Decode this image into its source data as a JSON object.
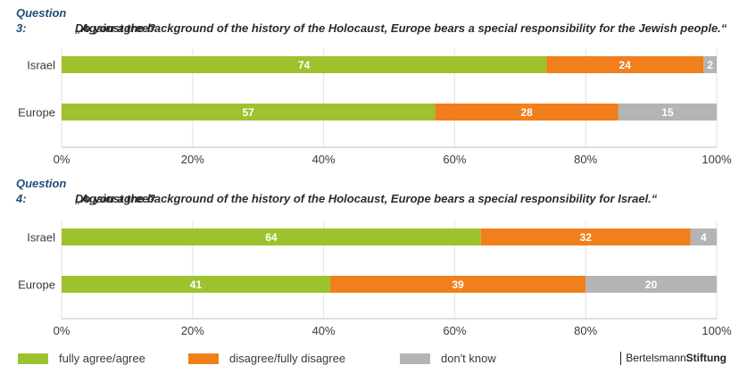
{
  "questions": [
    {
      "number": "Question 3:",
      "text": "„Against the background of the history of the Holocaust, Europe bears a special responsibility for the Jewish people.“",
      "sub": "Do you agree?"
    },
    {
      "number": "Question 4:",
      "text": "„Against the background of the history of the Holocaust, Europe bears a special responsibility for Israel.“",
      "sub": "Do you agree?"
    }
  ],
  "colors": {
    "agree": "#9dc22e",
    "disagree": "#f07f1c",
    "dontknow": "#b4b4b4",
    "title": "#1f4e79"
  },
  "legend": {
    "agree": "fully agree/agree",
    "disagree": "disagree/fully disagree",
    "dontknow": "don't know"
  },
  "brand": {
    "prefix": "Bertelsmann",
    "suffix": "Stiftung"
  },
  "chart_data": [
    {
      "type": "bar",
      "orientation": "horizontal",
      "stacked": true,
      "categories": [
        "Israel",
        "Europe"
      ],
      "series": [
        {
          "name": "fully agree/agree",
          "values": [
            74,
            57
          ]
        },
        {
          "name": "disagree/fully disagree",
          "values": [
            24,
            28
          ]
        },
        {
          "name": "don't know",
          "values": [
            2,
            15
          ]
        }
      ],
      "xlim": [
        0,
        100
      ],
      "ticks": [
        "0%",
        "20%",
        "40%",
        "60%",
        "80%",
        "100%"
      ],
      "legend_position": "bottom"
    },
    {
      "type": "bar",
      "orientation": "horizontal",
      "stacked": true,
      "categories": [
        "Israel",
        "Europe"
      ],
      "series": [
        {
          "name": "fully agree/agree",
          "values": [
            64,
            41
          ]
        },
        {
          "name": "disagree/fully disagree",
          "values": [
            32,
            39
          ]
        },
        {
          "name": "don't know",
          "values": [
            4,
            20
          ]
        }
      ],
      "xlim": [
        0,
        100
      ],
      "ticks": [
        "0%",
        "20%",
        "40%",
        "60%",
        "80%",
        "100%"
      ],
      "legend_position": "bottom"
    }
  ]
}
